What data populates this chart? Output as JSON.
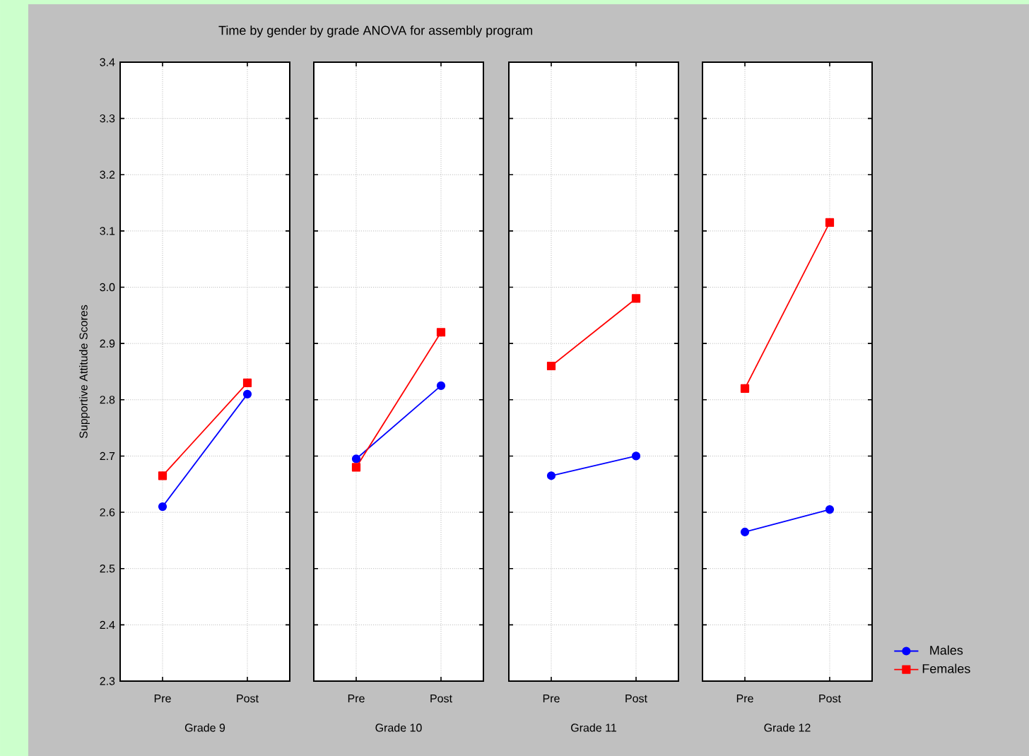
{
  "chart_data": [
    {
      "type": "line",
      "title": "Time by gender by grade ANOVA for assembly program",
      "ylabel": "Supportive Attitude Scores",
      "xlabel": "Grade 9",
      "categories": [
        "Pre",
        "Post"
      ],
      "ylim": [
        2.3,
        3.4
      ],
      "yticks": [
        2.3,
        2.4,
        2.5,
        2.6,
        2.7,
        2.8,
        2.9,
        {
          "value": 3.0,
          "label": "3.0"
        },
        3.1,
        3.2,
        3.3,
        3.4
      ],
      "grid": true,
      "legend": false,
      "series": [
        {
          "color": "#0000ff",
          "marker": "circle",
          "values": [
            2.61,
            2.81
          ]
        },
        {
          "color": "#ff0000",
          "marker": "square",
          "values": [
            2.665,
            2.83
          ]
        }
      ]
    },
    {
      "type": "line",
      "xlabel": "Grade 10",
      "categories": [
        "Pre",
        "Post"
      ],
      "ylim": [
        2.3,
        3.4
      ],
      "yticks": [
        2.3,
        2.4,
        2.5,
        2.6,
        2.7,
        2.8,
        2.9,
        3.0,
        3.1,
        3.2,
        3.3,
        3.4
      ],
      "grid": true,
      "legend": false,
      "tick_labels": "x",
      "series": [
        {
          "color": "#0000ff",
          "marker": "circle",
          "values": [
            2.695,
            2.825
          ]
        },
        {
          "color": "#ff0000",
          "marker": "square",
          "values": [
            2.68,
            2.92
          ]
        }
      ]
    },
    {
      "type": "line",
      "xlabel": "Grade 11",
      "categories": [
        "Pre",
        "Post"
      ],
      "ylim": [
        2.3,
        3.4
      ],
      "yticks": [
        2.3,
        2.4,
        2.5,
        2.6,
        2.7,
        2.8,
        2.9,
        3.0,
        3.1,
        3.2,
        3.3,
        3.4
      ],
      "grid": true,
      "legend": false,
      "tick_labels": "x",
      "series": [
        {
          "color": "#0000ff",
          "marker": "circle",
          "values": [
            2.665,
            2.7
          ]
        },
        {
          "color": "#ff0000",
          "marker": "square",
          "values": [
            2.86,
            2.98
          ]
        }
      ]
    },
    {
      "type": "line",
      "xlabel": "Grade 12",
      "categories": [
        "Pre",
        "Post"
      ],
      "ylim": [
        2.3,
        3.4
      ],
      "yticks": [
        2.3,
        2.4,
        2.5,
        2.6,
        2.7,
        2.8,
        2.9,
        3.0,
        3.1,
        3.2,
        3.3,
        3.4
      ],
      "grid": true,
      "legend": "bottom right",
      "tick_labels": "x",
      "series": [
        {
          "name": "Males",
          "color": "#0000ff",
          "marker": "circle",
          "values": [
            2.565,
            2.605
          ]
        },
        {
          "name": "Females",
          "color": "#ff0000",
          "marker": "square",
          "values": [
            2.82,
            3.115
          ]
        }
      ]
    }
  ]
}
